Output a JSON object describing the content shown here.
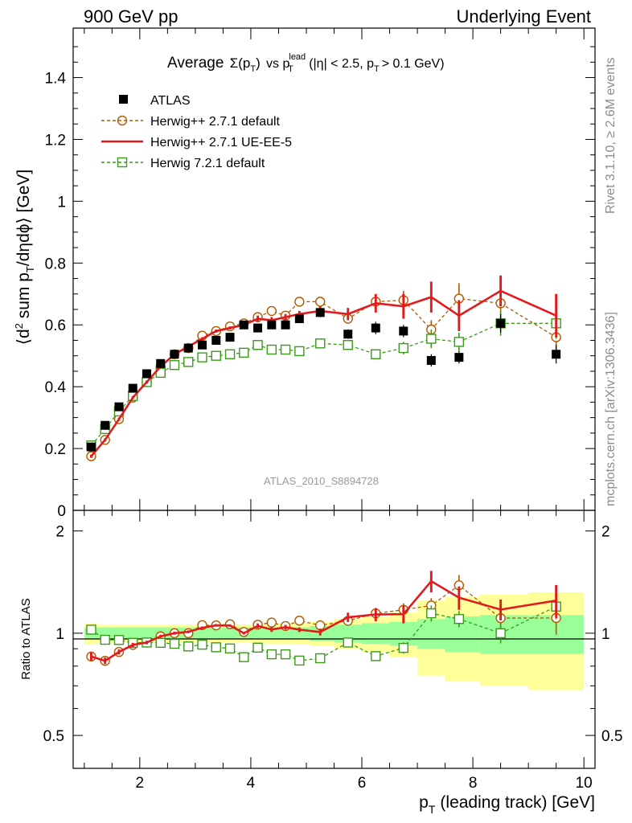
{
  "header": {
    "left_label": "900 GeV pp",
    "right_label": "Underlying Event"
  },
  "side_labels": {
    "top": "Rivet 3.1.10, ≥ 2.6M events",
    "bottom": "mcplots.cern.ch [arXiv:1306.3436]"
  },
  "main_plot": {
    "title_prefix": "Average",
    "title_sigma": "Σ(p",
    "title_t": "T",
    "title_paren": ")",
    "title_vs": "vs p",
    "title_lead": "lead",
    "title_t2": "T",
    "title_cut1": "(|η| < 2.5, p",
    "title_t3": "T",
    "title_cut2": "> 0.1 GeV)",
    "ylabel_parts": [
      "⟨d",
      "2",
      " sum p",
      "T",
      "/dηdϕ⟩ [GeV]"
    ],
    "watermark": "ATLAS_2010_S8894728",
    "y_ticks": [
      "0",
      "0.2",
      "0.4",
      "0.6",
      "0.8",
      "1",
      "1.2",
      "1.4"
    ]
  },
  "ratio_plot": {
    "ylabel": "Ratio to ATLAS",
    "y_ticks": [
      "0.5",
      "1",
      "2"
    ],
    "x_ticks": [
      "2",
      "4",
      "6",
      "8",
      "10"
    ],
    "xlabel_p": "p",
    "xlabel_t": "T",
    "xlabel_rest": "(leading track) [GeV]"
  },
  "legend": [
    {
      "label": "ATLAS",
      "color": "#000000",
      "style": "square-filled"
    },
    {
      "label": "Herwig++ 2.7.1 default",
      "color": "#b35900",
      "style": "dashed-circle"
    },
    {
      "label": "Herwig++ 2.7.1 UE-EE-5",
      "color": "#e31a1c",
      "style": "solid-line"
    },
    {
      "label": "Herwig 7.2.1 default",
      "color": "#3a9a1a",
      "style": "dashed-square"
    }
  ],
  "chart_data": {
    "type": "scatter",
    "x_range": [
      0.8,
      10.2
    ],
    "main_ylim": [
      0,
      1.56
    ],
    "ratio_ylim": [
      0.4,
      2.3
    ],
    "ratio_log": true,
    "band_colors": {
      "inner": "#99ff99",
      "outer": "#ffff99"
    },
    "x": [
      1.125,
      1.375,
      1.625,
      1.875,
      2.125,
      2.375,
      2.625,
      2.875,
      3.125,
      3.375,
      3.625,
      3.875,
      4.125,
      4.375,
      4.625,
      4.875,
      5.25,
      5.75,
      6.25,
      6.75,
      7.25,
      7.75,
      8.5,
      9.5
    ],
    "series": [
      {
        "name": "ATLAS",
        "color": "#000000",
        "values": [
          0.205,
          0.275,
          0.335,
          0.395,
          0.442,
          0.475,
          0.505,
          0.525,
          0.535,
          0.55,
          0.56,
          0.6,
          0.59,
          0.6,
          0.6,
          0.62,
          0.64,
          0.57,
          0.59,
          0.58,
          0.485,
          0.495,
          0.605,
          0.505
        ],
        "stat_err": [
          0.01,
          0.01,
          0.01,
          0.01,
          0.01,
          0.01,
          0.01,
          0.01,
          0.01,
          0.01,
          0.01,
          0.01,
          0.01,
          0.01,
          0.01,
          0.01,
          0.015,
          0.015,
          0.02,
          0.02,
          0.02,
          0.02,
          0.03,
          0.03
        ],
        "ratio_band_inner": [
          0.04,
          0.04,
          0.04,
          0.04,
          0.04,
          0.04,
          0.04,
          0.04,
          0.04,
          0.04,
          0.04,
          0.04,
          0.04,
          0.04,
          0.04,
          0.04,
          0.05,
          0.06,
          0.07,
          0.08,
          0.1,
          0.12,
          0.13,
          0.13
        ],
        "ratio_band_outer": [
          0.07,
          0.06,
          0.06,
          0.06,
          0.06,
          0.06,
          0.06,
          0.06,
          0.06,
          0.06,
          0.06,
          0.06,
          0.06,
          0.07,
          0.07,
          0.07,
          0.08,
          0.1,
          0.12,
          0.15,
          0.25,
          0.28,
          0.3,
          0.32
        ]
      },
      {
        "name": "Herwig++ 2.7.1 default",
        "color": "#b35900",
        "values": [
          0.175,
          0.228,
          0.295,
          0.365,
          0.415,
          0.465,
          0.505,
          0.525,
          0.565,
          0.58,
          0.595,
          0.605,
          0.625,
          0.645,
          0.63,
          0.675,
          0.675,
          0.62,
          0.675,
          0.68,
          0.585,
          0.685,
          0.67,
          0.56
        ],
        "errors": [
          0.005,
          0.005,
          0.005,
          0.005,
          0.005,
          0.005,
          0.005,
          0.005,
          0.005,
          0.005,
          0.005,
          0.005,
          0.005,
          0.005,
          0.005,
          0.01,
          0.01,
          0.015,
          0.02,
          0.03,
          0.03,
          0.05,
          0.06,
          0.06
        ]
      },
      {
        "name": "Herwig++ 2.7.1 UE-EE-5",
        "color": "#e31a1c",
        "values": [
          0.175,
          0.228,
          0.295,
          0.365,
          0.415,
          0.465,
          0.505,
          0.53,
          0.555,
          0.58,
          0.59,
          0.6,
          0.62,
          0.615,
          0.625,
          0.635,
          0.645,
          0.635,
          0.67,
          0.66,
          0.69,
          0.63,
          0.71,
          0.63
        ],
        "errors": [
          0.005,
          0.005,
          0.005,
          0.005,
          0.005,
          0.005,
          0.005,
          0.005,
          0.005,
          0.005,
          0.005,
          0.005,
          0.01,
          0.01,
          0.01,
          0.01,
          0.015,
          0.02,
          0.03,
          0.04,
          0.05,
          0.05,
          0.05,
          0.07
        ]
      },
      {
        "name": "Herwig 7.2.1 default",
        "color": "#3a9a1a",
        "values": [
          0.21,
          0.263,
          0.32,
          0.37,
          0.415,
          0.445,
          0.47,
          0.48,
          0.495,
          0.5,
          0.505,
          0.51,
          0.535,
          0.52,
          0.52,
          0.515,
          0.54,
          0.535,
          0.505,
          0.525,
          0.555,
          0.545,
          0.605,
          0.605
        ],
        "errors": [
          0.005,
          0.005,
          0.005,
          0.005,
          0.005,
          0.005,
          0.005,
          0.005,
          0.005,
          0.005,
          0.005,
          0.005,
          0.005,
          0.005,
          0.005,
          0.01,
          0.01,
          0.015,
          0.015,
          0.02,
          0.03,
          0.03,
          0.04,
          0.05
        ]
      }
    ]
  }
}
